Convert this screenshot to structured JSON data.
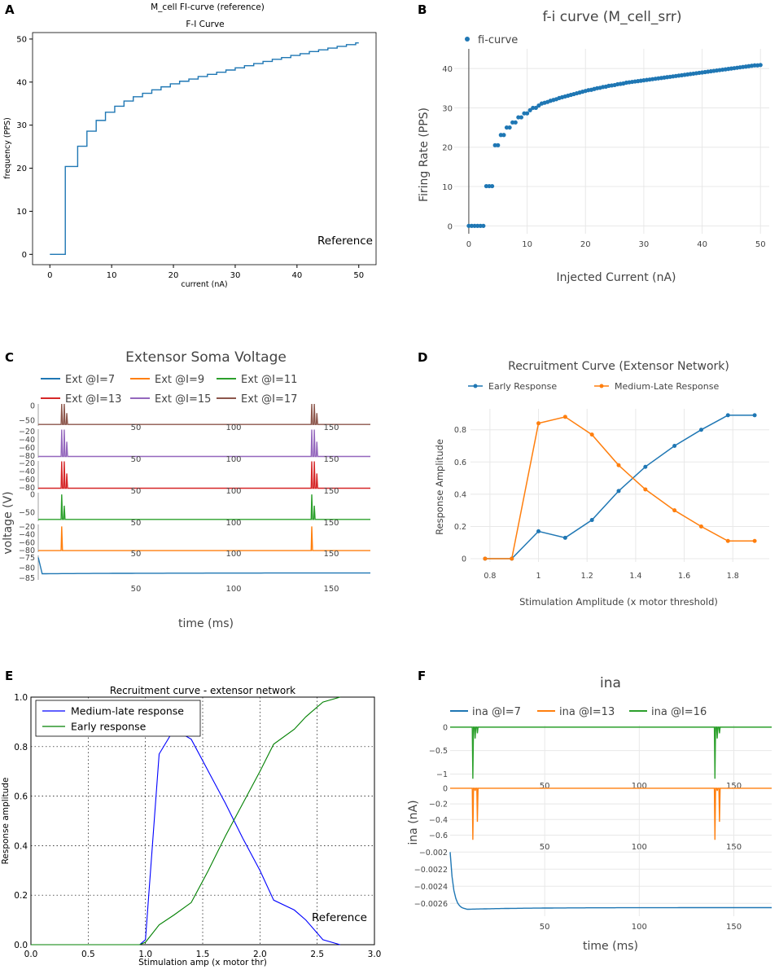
{
  "colors": {
    "blue": "#1f77b4",
    "orange": "#ff7f0e",
    "green": "#2ca02c",
    "red": "#d62728",
    "purple": "#9467bd",
    "brown": "#8c564b",
    "mplblue": "#0000ff",
    "mplgreen": "#008000",
    "gray_text": "#444444",
    "grid": "#e8e8e8"
  },
  "panels": {
    "A": "A",
    "B": "B",
    "C": "C",
    "D": "D",
    "E": "E",
    "F": "F"
  },
  "chart_data": [
    {
      "id": "A",
      "type": "line",
      "title": "M_cell FI-curve (reference)",
      "subtitle": "F-I Curve",
      "xlabel": "current (nA)",
      "ylabel": "frequency (PPS)",
      "annotation": "Reference",
      "xlim": [
        -2.8,
        52.8
      ],
      "ylim": [
        -2.4,
        51.5
      ],
      "xticks": [
        0,
        10,
        20,
        30,
        40,
        50
      ],
      "yticks": [
        0,
        10,
        20,
        30,
        40,
        50
      ],
      "series": [
        {
          "name": "fi",
          "step": true,
          "x": [
            0,
            2.5,
            4.5,
            6,
            7.5,
            9,
            10.5,
            12,
            13.5,
            15,
            16.5,
            18,
            19.5,
            21,
            22.5,
            24,
            25.5,
            27,
            28.5,
            30,
            31.5,
            33,
            34.5,
            36,
            37.5,
            39,
            40.5,
            42,
            43.5,
            45,
            46.5,
            48,
            49.5,
            50
          ],
          "y": [
            0,
            20.4,
            25.1,
            28.6,
            31.1,
            33.0,
            34.4,
            35.6,
            36.6,
            37.4,
            38.2,
            38.9,
            39.6,
            40.2,
            40.7,
            41.3,
            41.8,
            42.3,
            42.8,
            43.3,
            43.8,
            44.3,
            44.8,
            45.3,
            45.7,
            46.2,
            46.6,
            47.1,
            47.5,
            47.9,
            48.3,
            48.7,
            49.1,
            49.1
          ]
        }
      ]
    },
    {
      "id": "B",
      "type": "scatter",
      "title": "f-i curve (M_cell_srr)",
      "xlabel": "Injected Current (nA)",
      "ylabel": "Firing Rate (PPS)",
      "legend": [
        "fi-curve"
      ],
      "xlim": [
        -2.5,
        51.5
      ],
      "ylim": [
        -2,
        45
      ],
      "xticks": [
        0,
        10,
        20,
        30,
        40,
        50
      ],
      "yticks": [
        0,
        10,
        20,
        30,
        40
      ],
      "grid": true,
      "series": [
        {
          "name": "fi-curve",
          "x": [
            0,
            0.5,
            1,
            1.5,
            2,
            2.5,
            3,
            3.5,
            4,
            4.5,
            5,
            5.5,
            6,
            6.5,
            7,
            7.5,
            8,
            8.5,
            9,
            9.5,
            10,
            10.5,
            11,
            11.5,
            12,
            12.5,
            13,
            13.5,
            14,
            14.5,
            15,
            15.5,
            16,
            16.5,
            17,
            17.5,
            18,
            18.5,
            19,
            19.5,
            20,
            20.5,
            21,
            21.5,
            22,
            22.5,
            23,
            23.5,
            24,
            24.5,
            25,
            25.5,
            26,
            26.5,
            27,
            27.5,
            28,
            28.5,
            29,
            29.5,
            30,
            30.5,
            31,
            31.5,
            32,
            32.5,
            33,
            33.5,
            34,
            34.5,
            35,
            35.5,
            36,
            36.5,
            37,
            37.5,
            38,
            38.5,
            39,
            39.5,
            40,
            40.5,
            41,
            41.5,
            42,
            42.5,
            43,
            43.5,
            44,
            44.5,
            45,
            45.5,
            46,
            46.5,
            47,
            47.5,
            48,
            48.5,
            49,
            49.5,
            50
          ],
          "y": [
            0,
            0,
            0,
            0,
            0,
            0,
            10.1,
            10.1,
            10.1,
            20.5,
            20.5,
            23.1,
            23.1,
            25.0,
            25.0,
            26.3,
            26.3,
            27.6,
            27.6,
            28.6,
            28.6,
            29.4,
            30.0,
            30.0,
            30.6,
            31.1,
            31.3,
            31.5,
            31.8,
            32.0,
            32.2,
            32.5,
            32.7,
            32.9,
            33.1,
            33.3,
            33.5,
            33.7,
            33.9,
            34.1,
            34.3,
            34.5,
            34.6,
            34.8,
            35.0,
            35.1,
            35.3,
            35.4,
            35.6,
            35.7,
            35.8,
            36.0,
            36.1,
            36.2,
            36.4,
            36.5,
            36.6,
            36.7,
            36.8,
            36.9,
            37.0,
            37.1,
            37.2,
            37.3,
            37.4,
            37.5,
            37.6,
            37.7,
            37.8,
            37.9,
            38.0,
            38.1,
            38.2,
            38.3,
            38.4,
            38.5,
            38.6,
            38.7,
            38.8,
            38.9,
            39.0,
            39.1,
            39.2,
            39.3,
            39.4,
            39.5,
            39.6,
            39.7,
            39.8,
            39.9,
            40.0,
            40.1,
            40.2,
            40.3,
            40.4,
            40.5,
            40.6,
            40.7,
            40.8,
            40.8,
            40.9
          ]
        }
      ]
    },
    {
      "id": "C",
      "type": "line",
      "title": "Extensor Soma Voltage",
      "xlabel": "time (ms)",
      "ylabel": "voltage (V)",
      "xlim": [
        0,
        170
      ],
      "xticks": [
        50,
        100,
        150
      ],
      "spike_times": [
        12,
        140
      ],
      "legend": [
        "Ext @I=7",
        "Ext @I=9",
        "Ext @I=11",
        "Ext @I=13",
        "Ext @I=15",
        "Ext @I=17"
      ],
      "series": [
        {
          "name": "Ext @I=17",
          "ylim": [
            -70,
            5
          ],
          "yticks": [
            0,
            -50
          ],
          "yticklabels": [
            "0",
            "−50"
          ],
          "baseline": -65,
          "peak": 5,
          "spikes": 3
        },
        {
          "name": "Ext @I=15",
          "ylim": [
            -85,
            -15
          ],
          "yticks": [
            -20,
            -40,
            -60,
            -80
          ],
          "yticklabels": [
            "−20",
            "−40",
            "−60",
            "−80"
          ],
          "baseline": -82,
          "peak": -16,
          "spikes": 3
        },
        {
          "name": "Ext @I=13",
          "ylim": [
            -85,
            -15
          ],
          "yticks": [
            -20,
            -40,
            -60,
            -80
          ],
          "yticklabels": [
            "−20",
            "−40",
            "−60",
            "−80"
          ],
          "baseline": -82,
          "peak": -16,
          "spikes": 3
        },
        {
          "name": "Ext @I=11",
          "ylim": [
            -75,
            5
          ],
          "yticks": [
            0,
            -50
          ],
          "yticklabels": [
            "0",
            "−50"
          ],
          "baseline": -70,
          "peak": 0,
          "spikes": 2
        },
        {
          "name": "Ext @I=9",
          "ylim": [
            -85,
            -15
          ],
          "yticks": [
            -20,
            -40,
            -60,
            -80
          ],
          "yticklabels": [
            "−20",
            "−40",
            "−60",
            "−80"
          ],
          "baseline": -81,
          "peak": -20,
          "spikes": 1
        },
        {
          "name": "Ext @I=7",
          "ylim": [
            -86,
            -74
          ],
          "yticks": [
            -75,
            -80,
            -85
          ],
          "yticklabels": [
            "−75",
            "−80",
            "−85"
          ],
          "baseline": -83,
          "peak": -83,
          "spikes": 0
        }
      ]
    },
    {
      "id": "D",
      "type": "line",
      "title": "Recruitment Curve (Extensor Network)",
      "xlabel": "Stimulation Amplitude (x motor threshold)",
      "ylabel": "Response Amplitude",
      "xlim": [
        0.72,
        1.95
      ],
      "ylim": [
        -0.02,
        0.93
      ],
      "xticks": [
        0.8,
        1,
        1.2,
        1.4,
        1.6,
        1.8
      ],
      "yticks": [
        0,
        0.2,
        0.4,
        0.6,
        0.8
      ],
      "grid": true,
      "series": [
        {
          "name": "Early Response",
          "x": [
            0.78,
            0.89,
            1.0,
            1.11,
            1.22,
            1.33,
            1.44,
            1.56,
            1.67,
            1.78,
            1.89
          ],
          "y": [
            0,
            0,
            0.17,
            0.13,
            0.24,
            0.42,
            0.57,
            0.7,
            0.8,
            0.89,
            0.89
          ]
        },
        {
          "name": "Medium-Late Response",
          "x": [
            0.78,
            0.89,
            1.0,
            1.11,
            1.22,
            1.33,
            1.44,
            1.56,
            1.67,
            1.78,
            1.89
          ],
          "y": [
            0,
            0,
            0.84,
            0.88,
            0.77,
            0.58,
            0.43,
            0.3,
            0.2,
            0.11,
            0.11
          ]
        }
      ]
    },
    {
      "id": "E",
      "type": "line",
      "title": "Recruitment curve - extensor network",
      "xlabel": "Stimulation amp (x motor thr)",
      "ylabel": "Response amplitude",
      "annotation": "Reference",
      "xlim": [
        0,
        3.0
      ],
      "ylim": [
        0,
        1.0
      ],
      "xticks": [
        0,
        0.5,
        1.0,
        1.5,
        2.0,
        2.5,
        3.0
      ],
      "xticklabels": [
        "0.0",
        "0.5",
        "1.0",
        "1.5",
        "2.0",
        "2.5",
        "3.0"
      ],
      "yticks": [
        0,
        0.2,
        0.4,
        0.6,
        0.8,
        1.0
      ],
      "yticklabels": [
        "0.0",
        "0.2",
        "0.4",
        "0.6",
        "0.8",
        "1.0"
      ],
      "grid": "dotted",
      "series": [
        {
          "name": "Medium-late response",
          "x": [
            0,
            0.95,
            1.0,
            1.12,
            1.25,
            1.4,
            1.55,
            1.7,
            1.85,
            2.0,
            2.12,
            2.3,
            2.4,
            2.55,
            2.7
          ],
          "y": [
            0,
            0,
            0.02,
            0.77,
            0.87,
            0.83,
            0.7,
            0.57,
            0.43,
            0.3,
            0.18,
            0.14,
            0.1,
            0.02,
            0
          ]
        },
        {
          "name": "Early response",
          "x": [
            0,
            0.95,
            1.0,
            1.12,
            1.25,
            1.4,
            1.55,
            1.7,
            1.85,
            2.0,
            2.12,
            2.3,
            2.4,
            2.55,
            2.7
          ],
          "y": [
            0,
            0,
            0.01,
            0.08,
            0.12,
            0.17,
            0.3,
            0.44,
            0.57,
            0.7,
            0.81,
            0.87,
            0.92,
            0.98,
            1.0
          ]
        }
      ]
    },
    {
      "id": "F",
      "type": "line",
      "title": "ina",
      "xlabel": "time (ms)",
      "ylabel": "ina (nA)",
      "xlim": [
        0,
        170
      ],
      "xticks": [
        50,
        100,
        150
      ],
      "spike_times": [
        12,
        140
      ],
      "legend": [
        "ina @I=7",
        "ina @I=13",
        "ina @I=16"
      ],
      "series": [
        {
          "name": "ina @I=16",
          "ylim": [
            -1.2,
            0.05
          ],
          "yticks": [
            0,
            -0.5,
            -1
          ],
          "yticklabels": [
            "0",
            "−0.5",
            "−1"
          ],
          "baseline": 0,
          "trough": -1.1
        },
        {
          "name": "ina @I=13",
          "ylim": [
            -0.72,
            0.02
          ],
          "yticks": [
            0,
            -0.2,
            -0.4,
            -0.6
          ],
          "yticklabels": [
            "0",
            "−0.2",
            "−0.4",
            "−0.6"
          ],
          "baseline": 0,
          "trough": -0.66
        },
        {
          "name": "ina @I=7",
          "ylim": [
            -0.00275,
            -0.00195
          ],
          "yticks": [
            -0.002,
            -0.0022,
            -0.0024,
            -0.0026
          ],
          "yticklabels": [
            "−0.002",
            "−0.0022",
            "−0.0024",
            "−0.0026"
          ],
          "start": -0.002,
          "steady": -0.00265
        }
      ]
    }
  ]
}
